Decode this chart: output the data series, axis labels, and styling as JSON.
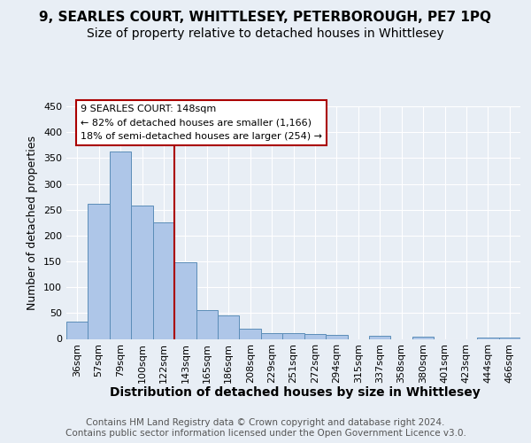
{
  "title": "9, SEARLES COURT, WHITTLESEY, PETERBOROUGH, PE7 1PQ",
  "subtitle": "Size of property relative to detached houses in Whittlesey",
  "xlabel": "Distribution of detached houses by size in Whittlesey",
  "ylabel": "Number of detached properties",
  "categories": [
    "36sqm",
    "57sqm",
    "79sqm",
    "100sqm",
    "122sqm",
    "143sqm",
    "165sqm",
    "186sqm",
    "208sqm",
    "229sqm",
    "251sqm",
    "272sqm",
    "294sqm",
    "315sqm",
    "337sqm",
    "358sqm",
    "380sqm",
    "401sqm",
    "423sqm",
    "444sqm",
    "466sqm"
  ],
  "values": [
    33,
    262,
    362,
    258,
    225,
    148,
    55,
    45,
    20,
    12,
    12,
    10,
    7,
    0,
    6,
    0,
    4,
    0,
    0,
    3,
    3
  ],
  "bar_color": "#aec6e8",
  "bar_edge_color": "#5b8db8",
  "vline_color": "#aa0000",
  "vline_pos": 4.5,
  "annotation_text": "9 SEARLES COURT: 148sqm\n← 82% of detached houses are smaller (1,166)\n18% of semi-detached houses are larger (254) →",
  "bg_color": "#e8eef5",
  "grid_color": "#ffffff",
  "footer_text": "Contains HM Land Registry data © Crown copyright and database right 2024.\nContains public sector information licensed under the Open Government Licence v3.0.",
  "ylim": [
    0,
    450
  ],
  "yticks": [
    0,
    50,
    100,
    150,
    200,
    250,
    300,
    350,
    400,
    450
  ],
  "title_fontsize": 11,
  "subtitle_fontsize": 10,
  "xlabel_fontsize": 10,
  "ylabel_fontsize": 9,
  "tick_fontsize": 8,
  "annot_fontsize": 8,
  "footer_fontsize": 7.5
}
